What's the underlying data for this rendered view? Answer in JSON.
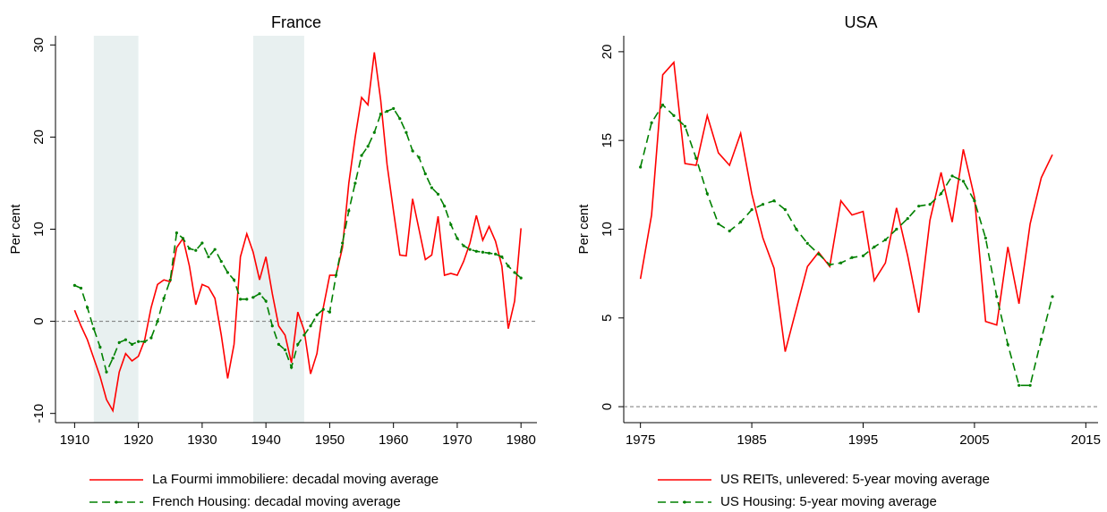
{
  "chart_data": [
    {
      "type": "line",
      "title": "France",
      "ylabel": "Per cent",
      "xlim": [
        1907,
        1982.5
      ],
      "xticks": [
        1910,
        1920,
        1930,
        1940,
        1950,
        1960,
        1970,
        1980
      ],
      "ylim": [
        -11,
        31
      ],
      "yticks": [
        -10,
        0,
        10,
        20,
        30
      ],
      "shaded_regions": [
        [
          1913,
          1920
        ],
        [
          1938,
          1946
        ]
      ],
      "reference_line": 0,
      "x": [
        1910,
        1911,
        1912,
        1913,
        1914,
        1915,
        1916,
        1917,
        1918,
        1919,
        1920,
        1921,
        1922,
        1923,
        1924,
        1925,
        1926,
        1927,
        1928,
        1929,
        1930,
        1931,
        1932,
        1933,
        1934,
        1935,
        1936,
        1937,
        1938,
        1939,
        1940,
        1941,
        1942,
        1943,
        1944,
        1945,
        1946,
        1947,
        1948,
        1949,
        1950,
        1951,
        1952,
        1953,
        1954,
        1955,
        1956,
        1957,
        1958,
        1959,
        1960,
        1961,
        1962,
        1963,
        1964,
        1965,
        1966,
        1967,
        1968,
        1969,
        1970,
        1971,
        1972,
        1973,
        1974,
        1975,
        1976,
        1977,
        1978,
        1979,
        1980
      ],
      "series": [
        {
          "name": "La Fourmi immobiliere: decadal moving average",
          "color": "#ff0000",
          "dash": false,
          "values": [
            1.2,
            -0.5,
            -2,
            -4,
            -6,
            -8.5,
            -9.7,
            -5.5,
            -3.5,
            -4.3,
            -3.8,
            -2,
            1.5,
            4,
            4.5,
            4.3,
            8,
            9,
            6,
            1.8,
            4,
            3.7,
            2.5,
            -1.5,
            -6.2,
            -2.5,
            7,
            9.5,
            7.5,
            4.5,
            7,
            3,
            -0.5,
            -1.5,
            -4.5,
            1,
            -1,
            -5.7,
            -3.5,
            1.5,
            5,
            5,
            8,
            15,
            20,
            24.3,
            23.5,
            29.2,
            24,
            17,
            12,
            7.2,
            7.1,
            13.3,
            10,
            6.7,
            7.2,
            11.4,
            5,
            5.2,
            5,
            6.5,
            8.5,
            11.5,
            8.8,
            10.3,
            8.7,
            6,
            -0.8,
            2.2,
            10.1
          ]
        },
        {
          "name": "French Housing: decadal moving average",
          "color": "#008000",
          "dash": true,
          "values": [
            3.9,
            3.6,
            1.5,
            -0.8,
            -2.8,
            -5.5,
            -4,
            -2.3,
            -2,
            -2.5,
            -2.2,
            -2.2,
            -1.8,
            0,
            2.5,
            4.5,
            9.6,
            9,
            7.9,
            7.7,
            8.5,
            7,
            7.8,
            6.5,
            5.3,
            4.5,
            2.4,
            2.4,
            2.6,
            3,
            2.2,
            -0.5,
            -2.5,
            -3.1,
            -5,
            -2.5,
            -1.5,
            -0.5,
            0.7,
            1.3,
            1,
            5,
            8.5,
            12,
            15,
            18,
            19,
            20.5,
            22.5,
            22.8,
            23.1,
            22,
            20.5,
            18.5,
            17.8,
            16,
            14.5,
            13.8,
            12.5,
            10.5,
            9,
            8.2,
            7.8,
            7.6,
            7.5,
            7.4,
            7.3,
            7,
            6,
            5.3,
            4.7
          ]
        }
      ]
    },
    {
      "type": "line",
      "title": "USA",
      "ylabel": "Per cent",
      "xlim": [
        1973.5,
        2016.1
      ],
      "xticks": [
        1975,
        1985,
        1995,
        2005,
        2015
      ],
      "ylim": [
        -0.9,
        20.9
      ],
      "yticks": [
        0,
        5,
        10,
        15,
        20
      ],
      "reference_line": 0,
      "x": [
        1975,
        1976,
        1977,
        1978,
        1979,
        1980,
        1981,
        1982,
        1983,
        1984,
        1985,
        1986,
        1987,
        1988,
        1989,
        1990,
        1991,
        1992,
        1993,
        1994,
        1995,
        1996,
        1997,
        1998,
        1999,
        2000,
        2001,
        2002,
        2003,
        2004,
        2005,
        2006,
        2007,
        2008,
        2009,
        2010,
        2011,
        2012
      ],
      "series": [
        {
          "name": "US REITs, unlevered: 5-year moving average",
          "color": "#ff0000",
          "dash": false,
          "values": [
            7.2,
            10.8,
            18.7,
            19.4,
            13.7,
            13.6,
            16.4,
            14.3,
            13.6,
            15.4,
            12,
            9.5,
            7.8,
            3.1,
            5.5,
            7.9,
            8.7,
            7.9,
            11.6,
            10.8,
            11,
            7.1,
            8.1,
            11.2,
            8.5,
            5.3,
            10.5,
            13.2,
            10.4,
            14.5,
            11.8,
            4.8,
            4.6,
            9,
            5.8,
            10.3,
            12.9,
            14.2
          ]
        },
        {
          "name": "US Housing: 5-year moving average",
          "color": "#008000",
          "dash": true,
          "values": [
            13.5,
            16,
            17,
            16.4,
            15.8,
            14,
            12,
            10.3,
            9.9,
            10.4,
            11.1,
            11.4,
            11.6,
            11.1,
            10,
            9.2,
            8.6,
            8,
            8.1,
            8.4,
            8.5,
            9,
            9.4,
            10,
            10.6,
            11.3,
            11.4,
            12,
            13,
            12.7,
            11.6,
            9.5,
            6.2,
            3.5,
            1.2,
            1.2,
            3.8,
            6.2
          ]
        }
      ]
    }
  ]
}
